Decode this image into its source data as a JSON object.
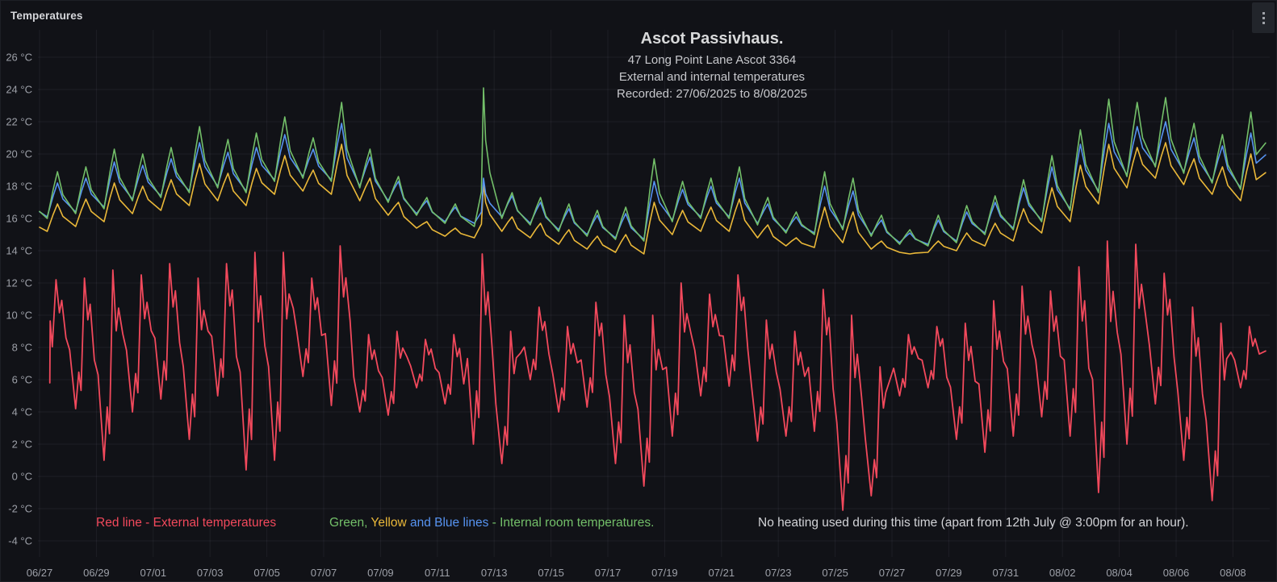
{
  "panel": {
    "title": "Temperatures"
  },
  "theme": {
    "background": "#111217",
    "grid": "rgba(204,204,220,0.07)",
    "axis_text": "#9da0a8",
    "title_text": "#d8d9da"
  },
  "chart_data": {
    "type": "line",
    "title": "Ascot Passivhaus.",
    "subtitle_lines": [
      "47 Long Point Lane Ascot 3364",
      "External and internal temperatures",
      "Recorded:  27/06/2025 to 8/08/2025"
    ],
    "y_axis": {
      "unit": "°C",
      "ylim": [
        -4,
        26
      ],
      "tick_values": [
        26,
        24,
        22,
        20,
        18,
        16,
        14,
        12,
        10,
        8,
        6,
        4,
        2,
        0,
        -2,
        -4
      ],
      "tick_labels": [
        "26 °C",
        "24 °C",
        "22 °C",
        "20 °C",
        "18 °C",
        "16 °C",
        "14 °C",
        "12 °C",
        "10 °C",
        "8 °C",
        "6 °C",
        "4 °C",
        "2 °C",
        "0 °C",
        "-2 °C",
        "-4 °C"
      ]
    },
    "x_axis": {
      "tick_labels": [
        "06/27",
        "06/29",
        "07/01",
        "07/03",
        "07/05",
        "07/07",
        "07/09",
        "07/11",
        "07/13",
        "07/15",
        "07/17",
        "07/19",
        "07/21",
        "07/23",
        "07/25",
        "07/27",
        "07/29",
        "07/31",
        "08/02",
        "08/04",
        "08/06",
        "08/08"
      ],
      "dates": [
        "06/27",
        "06/28",
        "06/29",
        "06/30",
        "07/01",
        "07/02",
        "07/03",
        "07/04",
        "07/05",
        "07/06",
        "07/07",
        "07/08",
        "07/09",
        "07/10",
        "07/11",
        "07/12",
        "07/13",
        "07/14",
        "07/15",
        "07/16",
        "07/17",
        "07/18",
        "07/19",
        "07/20",
        "07/21",
        "07/22",
        "07/23",
        "07/24",
        "07/25",
        "07/26",
        "07/27",
        "07/28",
        "07/29",
        "07/30",
        "07/31",
        "08/01",
        "08/02",
        "08/03",
        "08/04",
        "08/05",
        "08/06",
        "08/07",
        "08/08"
      ]
    },
    "heating_spike_day_index": 15,
    "heating_spike_note": "12th July @ 3:00pm heating for one hour",
    "series": [
      {
        "name": "Internal room temperature (green)",
        "color": "#73BF69",
        "kind": "internal",
        "daily_min": [
          16.0,
          16.3,
          16.6,
          17.1,
          17.3,
          17.6,
          17.9,
          17.6,
          18.3,
          18.5,
          18.3,
          17.9,
          17.0,
          16.2,
          15.7,
          15.5,
          16.0,
          15.6,
          15.2,
          14.9,
          14.7,
          14.6,
          15.8,
          16.0,
          16.0,
          15.6,
          15.1,
          15.0,
          15.3,
          14.9,
          14.4,
          14.3,
          14.5,
          15.0,
          15.3,
          15.8,
          16.5,
          17.6,
          18.6,
          19.2,
          18.8,
          18.2,
          17.8
        ],
        "daily_max": [
          18.9,
          19.2,
          20.3,
          20.0,
          20.4,
          21.7,
          20.9,
          21.3,
          22.3,
          21.0,
          23.2,
          20.3,
          18.6,
          17.3,
          16.9,
          24.1,
          17.6,
          17.3,
          16.9,
          16.5,
          16.7,
          19.7,
          18.3,
          18.5,
          19.2,
          17.3,
          16.4,
          18.9,
          18.5,
          16.2,
          15.3,
          16.2,
          16.8,
          17.4,
          18.4,
          19.9,
          21.5,
          23.4,
          23.2,
          23.5,
          21.9,
          21.2,
          22.6
        ]
      },
      {
        "name": "Internal room temperature (blue)",
        "color": "#5794F2",
        "kind": "internal",
        "daily_min": [
          16.1,
          16.4,
          16.7,
          17.2,
          17.4,
          17.7,
          18.0,
          17.7,
          18.4,
          18.6,
          18.4,
          18.0,
          17.1,
          16.3,
          15.8,
          15.7,
          16.1,
          15.7,
          15.3,
          15.0,
          14.8,
          14.7,
          15.9,
          16.1,
          16.1,
          15.7,
          15.2,
          15.1,
          15.4,
          15.0,
          14.5,
          14.4,
          14.6,
          15.1,
          15.4,
          15.9,
          16.6,
          17.7,
          18.7,
          19.3,
          18.9,
          18.3,
          17.9
        ],
        "daily_max": [
          18.2,
          18.5,
          19.5,
          19.3,
          19.7,
          20.7,
          20.1,
          20.4,
          21.2,
          20.3,
          21.9,
          19.8,
          18.3,
          17.1,
          16.7,
          18.5,
          17.4,
          17.0,
          16.6,
          16.2,
          16.3,
          18.3,
          17.8,
          18.0,
          18.5,
          16.9,
          16.1,
          18.0,
          17.7,
          15.9,
          15.1,
          15.9,
          16.4,
          17.0,
          17.9,
          19.2,
          20.6,
          21.9,
          21.7,
          22.0,
          21.0,
          20.5,
          21.3
        ]
      },
      {
        "name": "Internal room temperature (yellow)",
        "color": "#EAB839",
        "kind": "internal",
        "daily_min": [
          15.2,
          15.5,
          15.8,
          16.3,
          16.5,
          16.8,
          17.1,
          16.8,
          17.5,
          17.7,
          17.5,
          17.1,
          16.2,
          15.4,
          14.9,
          14.8,
          15.2,
          14.8,
          14.4,
          14.1,
          13.9,
          13.8,
          15.0,
          15.2,
          15.2,
          14.8,
          14.3,
          14.2,
          14.5,
          14.1,
          13.9,
          13.9,
          14.0,
          14.3,
          14.6,
          15.1,
          15.8,
          16.9,
          17.9,
          18.5,
          18.1,
          17.5,
          17.1
        ],
        "daily_max": [
          16.9,
          17.2,
          18.2,
          18.0,
          18.4,
          19.4,
          18.8,
          19.1,
          19.9,
          19.0,
          20.6,
          18.5,
          17.0,
          15.8,
          15.4,
          18.2,
          16.1,
          15.7,
          15.3,
          14.9,
          15.0,
          17.0,
          16.5,
          16.7,
          17.2,
          15.6,
          14.8,
          16.7,
          16.4,
          14.6,
          13.8,
          14.6,
          15.1,
          15.7,
          16.6,
          17.9,
          19.3,
          20.6,
          20.4,
          20.7,
          19.7,
          19.2,
          20.0
        ]
      },
      {
        "name": "External temperature (red)",
        "color": "#F2495C",
        "kind": "external",
        "daily_min": [
          5.8,
          4.2,
          1.0,
          4.0,
          4.8,
          2.3,
          5.0,
          0.4,
          1.0,
          6.2,
          4.4,
          4.0,
          3.8,
          5.5,
          4.5,
          2.0,
          0.8,
          6.0,
          4.0,
          4.3,
          0.8,
          -0.6,
          2.5,
          5.0,
          5.6,
          2.2,
          2.5,
          2.8,
          -2.1,
          -1.2,
          5.0,
          5.5,
          2.3,
          1.5,
          2.5,
          3.7,
          2.5,
          -1.0,
          2.0,
          4.5,
          1.0,
          -1.5,
          5.5
        ],
        "daily_max": [
          12.2,
          12.3,
          12.8,
          12.5,
          13.2,
          12.3,
          13.2,
          13.9,
          13.9,
          12.3,
          14.3,
          8.8,
          9.0,
          8.5,
          8.8,
          13.8,
          9.0,
          10.5,
          9.3,
          10.8,
          10.0,
          10.0,
          12.0,
          11.3,
          12.5,
          9.7,
          9.0,
          11.6,
          10.0,
          6.8,
          8.8,
          9.3,
          9.5,
          10.9,
          11.8,
          11.5,
          13.0,
          14.6,
          14.4,
          12.6,
          10.5,
          9.5,
          9.3
        ]
      }
    ]
  },
  "notes": {
    "red_note": {
      "text": "Red line - External temperatures",
      "color": "#F2495C"
    },
    "internal_note_parts": [
      {
        "text": "Green,",
        "color": "#73BF69"
      },
      {
        "text": " Yellow",
        "color": "#EAB839"
      },
      {
        "text": " and Blue lines",
        "color": "#5794F2"
      },
      {
        "text": " - Internal room temperatures.",
        "color": "#73BF69"
      }
    ],
    "heating_note": "No heating used during this time (apart from 12th July @ 3:00pm for an hour)."
  }
}
